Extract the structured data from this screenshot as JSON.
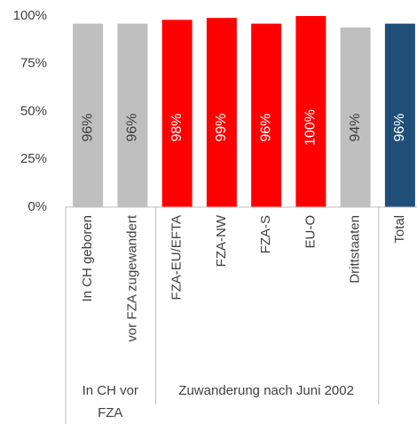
{
  "chart_data": {
    "type": "bar",
    "categories": [
      "In CH geboren",
      "vor FZA zugewandert",
      "FZA-EU/EFTA",
      "FZA-NW",
      "FZA-S",
      "EU-O",
      "Drittstaaten",
      "Total"
    ],
    "values": [
      96,
      96,
      98,
      99,
      96,
      100,
      94,
      96
    ],
    "value_labels": [
      "96%",
      "96%",
      "98%",
      "99%",
      "96%",
      "100%",
      "94%",
      "96%"
    ],
    "colors": [
      "#bfbfbf",
      "#bfbfbf",
      "#ff0000",
      "#ff0000",
      "#ff0000",
      "#ff0000",
      "#bfbfbf",
      "#1f4e79"
    ],
    "groups": [
      {
        "label": [
          "In CH vor",
          "FZA"
        ]
      },
      {
        "label": [
          "Zuwanderung nach Juni 2002"
        ]
      }
    ],
    "ylim": [
      0,
      100
    ],
    "yticks": [
      {
        "value": 0,
        "label": "0%"
      },
      {
        "value": 25,
        "label": "25%"
      },
      {
        "value": 50,
        "label": "50%"
      },
      {
        "value": 75,
        "label": "75%"
      },
      {
        "value": 100,
        "label": "100%"
      }
    ],
    "grid": false
  }
}
